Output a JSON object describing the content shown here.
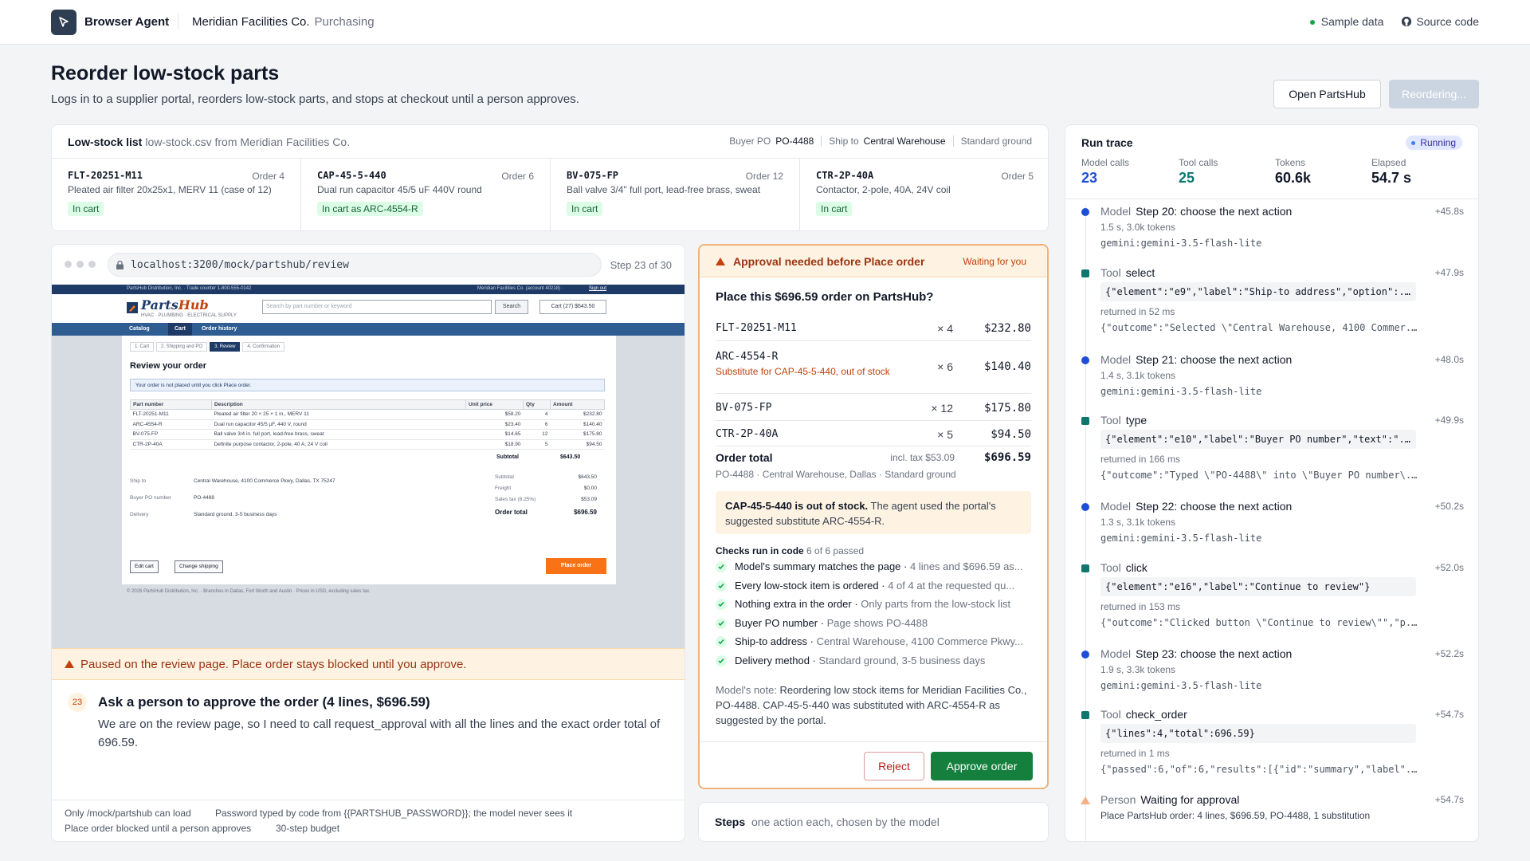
{
  "topbar": {
    "brand": "Browser Agent",
    "org": "Meridian Facilities Co.",
    "org_sub": "Purchasing",
    "sample_data": "Sample data",
    "source_code": "Source code"
  },
  "page": {
    "title": "Reorder low-stock parts",
    "subtitle": "Logs in to a supplier portal, reorders low-stock parts, and stops at checkout until a person approves.",
    "open_button": "Open PartsHub",
    "busy_button": "Reordering..."
  },
  "low_stock": {
    "title": "Low-stock list",
    "source": "low-stock.csv from Meridian Facilities Co.",
    "buyer_po_label": "Buyer PO",
    "buyer_po": "PO-4488",
    "ship_to_label": "Ship to",
    "ship_to": "Central Warehouse",
    "shipping": "Standard ground",
    "items": [
      {
        "sku": "FLT-20251-M11",
        "qty": "Order 4",
        "desc": "Pleated air filter 20x25x1, MERV 11 (case of 12)",
        "status": "In cart"
      },
      {
        "sku": "CAP-45-5-440",
        "qty": "Order 6",
        "desc": "Dual run capacitor 45/5 uF 440V round",
        "status": "In cart as ARC-4554-R"
      },
      {
        "sku": "BV-075-FP",
        "qty": "Order 12",
        "desc": "Ball valve 3/4\" full port, lead-free brass, sweat",
        "status": "In cart"
      },
      {
        "sku": "CTR-2P-40A",
        "qty": "Order 5",
        "desc": "Contactor, 2-pole, 40A, 24V coil",
        "status": "In cart"
      }
    ]
  },
  "browser": {
    "url": "localhost:3200/mock/partshub/review",
    "step": "Step 23 of 30",
    "paused": "Paused on the review page. Place order stays blocked until you approve.",
    "step_num": "23",
    "step_title": "Ask a person to approve the order (4 lines, $696.59)",
    "step_body": "We are on the review page, so I need to call request_approval with all the lines and the exact order total of 696.59.",
    "footer": [
      "Only /mock/partshub can load",
      "Password typed by code from {{PARTSHUB_PASSWORD}}; the model never sees it",
      "Place order blocked until a person approves",
      "30-step budget"
    ]
  },
  "portal": {
    "strip_left": "PartsHub Distribution, Inc. · Trade counter 1-800-555-0142",
    "strip_right": "Meridian Facilities Co. (account 40218) ·",
    "sign_out": "Sign out",
    "logo_a": "Parts",
    "logo_b": "Hub",
    "tagline": "HVAC · PLUMBING · ELECTRICAL SUPPLY",
    "search_placeholder": "Search by part number or keyword",
    "search_btn": "Search",
    "cart": "Cart (27) $643.50",
    "nav": [
      "Catalog",
      "Cart",
      "Order history"
    ],
    "steps": [
      "1. Cart",
      "2. Shipping and PO",
      "3. Review",
      "4. Confirmation"
    ],
    "heading": "Review your order",
    "notice": "Your order is not placed until you click Place order.",
    "columns": [
      "Part number",
      "Description",
      "Unit price",
      "Qty",
      "Amount"
    ],
    "rows": [
      [
        "FLT-20251-M11",
        "Pleated air filter 20 × 25 × 1 in., MERV 11",
        "$58.20",
        "4",
        "$232.80"
      ],
      [
        "ARC-4554-R",
        "Dual run capacitor 45/5 µF, 440 V, round",
        "$23.40",
        "6",
        "$140.40"
      ],
      [
        "BV-075-FP",
        "Ball valve 3/4 in. full port, lead-free brass, sweat",
        "$14.65",
        "12",
        "$175.80"
      ],
      [
        "CTR-2P-40A",
        "Definite purpose contactor, 2-pole, 40 A, 24 V coil",
        "$18.90",
        "5",
        "$94.50"
      ]
    ],
    "subtotal_label": "Subtotal",
    "subtotal": "$643.50",
    "ship_to_label": "Ship to",
    "ship_to": "Central Warehouse, 4100 Commerce Pkwy, Dallas, TX 75247",
    "po_label": "Buyer PO number",
    "po": "PO-4488",
    "delivery_label": "Delivery",
    "delivery": "Standard ground, 3-5 business days",
    "tot_subtotal_label": "Subtotal",
    "tot_subtotal": "$643.50",
    "freight_label": "Freight",
    "freight": "$0.00",
    "tax_label": "Sales tax (8.25%)",
    "tax": "$53.09",
    "total_label": "Order total",
    "total": "$696.59",
    "edit_cart": "Edit cart",
    "change_shipping": "Change shipping",
    "place_order": "Place order",
    "footer": "© 2026 PartsHub Distribution, Inc. · Branches in Dallas, Fort Worth and Austin · Prices in USD, excluding sales tax."
  },
  "approval": {
    "header": "Approval needed before Place order",
    "waiting": "Waiting for you",
    "question": "Place this $696.59 order on PartsHub?",
    "lines": [
      {
        "sku": "FLT-20251-M11",
        "qty": "× 4",
        "price": "$232.80"
      },
      {
        "sku": "ARC-4554-R",
        "note": "Substitute for CAP-45-5-440, out of stock",
        "qty": "× 6",
        "price": "$140.40"
      },
      {
        "sku": "BV-075-FP",
        "qty": "× 12",
        "price": "$175.80"
      },
      {
        "sku": "CTR-2P-40A",
        "qty": "× 5",
        "price": "$94.50"
      }
    ],
    "total_label": "Order total",
    "tax": "incl. tax $53.09",
    "total": "$696.59",
    "meta": "PO-4488 · Central Warehouse, Dallas · Standard ground",
    "oos_bold": "CAP-45-5-440 is out of stock.",
    "oos_text": "The agent used the portal's suggested substitute ARC-4554-R.",
    "checks_label": "Checks run in code",
    "checks_count": "6 of 6 passed",
    "checks": [
      {
        "name": "Model's summary matches the page",
        "detail": "4 lines and $696.59 as..."
      },
      {
        "name": "Every low-stock item is ordered",
        "detail": "4 of 4 at the requested qu..."
      },
      {
        "name": "Nothing extra in the order",
        "detail": "Only parts from the low-stock list"
      },
      {
        "name": "Buyer PO number",
        "detail": "Page shows PO-4488"
      },
      {
        "name": "Ship-to address",
        "detail": "Central Warehouse, 4100 Commerce Pkwy..."
      },
      {
        "name": "Delivery method",
        "detail": "Standard ground, 3-5 business days"
      }
    ],
    "note_label": "Model's note:",
    "note": "Reordering low stock items for Meridian Facilities Co., PO-4488. CAP-45-5-440 was substituted with ARC-4554-R as suggested by the portal.",
    "reject": "Reject",
    "approve": "Approve order"
  },
  "steps_panel": {
    "title": "Steps",
    "subtitle": "one action each, chosen by the model"
  },
  "trace": {
    "title": "Run trace",
    "status": "Running",
    "stats": [
      {
        "label": "Model calls",
        "value": "23",
        "color": "#1d4ed8"
      },
      {
        "label": "Tool calls",
        "value": "25",
        "color": "#0f766e"
      },
      {
        "label": "Tokens",
        "value": "60.6k",
        "color": "#111827"
      },
      {
        "label": "Elapsed",
        "value": "54.7 s",
        "color": "#111827"
      }
    ],
    "events": [
      {
        "kind": "Model",
        "name": "Step 20: choose the next action",
        "time": "+45.8s",
        "sub": "1.5 s, 3.0k tokens",
        "model": "gemini:gemini-3.5-flash-lite"
      },
      {
        "kind": "Tool",
        "name": "select",
        "time": "+47.9s",
        "args": "{\"element\":\"e9\",\"label\":\"Ship-to address\",\"option\":...",
        "sub": "returned in 52 ms",
        "result": "{\"outcome\":\"Selected \\\"Central Warehouse, 4100 Commer..."
      },
      {
        "kind": "Model",
        "name": "Step 21: choose the next action",
        "time": "+48.0s",
        "sub": "1.4 s, 3.1k tokens",
        "model": "gemini:gemini-3.5-flash-lite"
      },
      {
        "kind": "Tool",
        "name": "type",
        "time": "+49.9s",
        "args": "{\"element\":\"e10\",\"label\":\"Buyer PO number\",\"text\":\"...",
        "sub": "returned in 166 ms",
        "result": "{\"outcome\":\"Typed \\\"PO-4488\\\" into \\\"Buyer PO number\\..."
      },
      {
        "kind": "Model",
        "name": "Step 22: choose the next action",
        "time": "+50.2s",
        "sub": "1.3 s, 3.1k tokens",
        "model": "gemini:gemini-3.5-flash-lite"
      },
      {
        "kind": "Tool",
        "name": "click",
        "time": "+52.0s",
        "args": "{\"element\":\"e16\",\"label\":\"Continue to review\"}",
        "sub": "returned in 153 ms",
        "result": "{\"outcome\":\"Clicked button \\\"Continue to review\\\"\",\"p..."
      },
      {
        "kind": "Model",
        "name": "Step 23: choose the next action",
        "time": "+52.2s",
        "sub": "1.9 s, 3.3k tokens",
        "model": "gemini:gemini-3.5-flash-lite"
      },
      {
        "kind": "Tool",
        "name": "check_order",
        "time": "+54.7s",
        "args": "{\"lines\":4,\"total\":696.59}",
        "sub": "returned in 1 ms",
        "result": "{\"passed\":6,\"of\":6,\"results\":[{\"id\":\"summary\",\"label\"..."
      },
      {
        "kind": "Person",
        "name": "Waiting for approval",
        "time": "+54.7s",
        "sub": "Place PartsHub order: 4 lines, $696.59, PO-4488, 1 substitution"
      }
    ]
  }
}
